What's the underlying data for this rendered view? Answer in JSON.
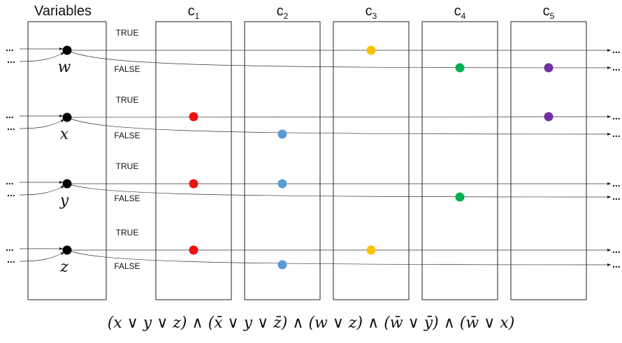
{
  "header": {
    "variables": "Variables"
  },
  "clauses": [
    {
      "name": "c",
      "sub": "1"
    },
    {
      "name": "c",
      "sub": "2"
    },
    {
      "name": "c",
      "sub": "3"
    },
    {
      "name": "c",
      "sub": "4"
    },
    {
      "name": "c",
      "sub": "5"
    }
  ],
  "variables": [
    {
      "name": "w",
      "true_label": "TRUE",
      "false_label": "FALSE"
    },
    {
      "name": "x",
      "true_label": "TRUE",
      "false_label": "FALSE"
    },
    {
      "name": "y",
      "true_label": "TRUE",
      "false_label": "FALSE"
    },
    {
      "name": "z",
      "true_label": "TRUE",
      "false_label": "FALSE"
    }
  ],
  "ellipsis": "...",
  "colors": {
    "c1": "#ee1111",
    "c2": "#5b9bd5",
    "c3": "#ffc000",
    "c4": "#00b050",
    "c5": "#7030a0",
    "variable_node": "#000000"
  },
  "nodes": [
    {
      "var": "w",
      "line": "true",
      "clause": 3,
      "color": "#ffc000"
    },
    {
      "var": "w",
      "line": "false",
      "clause": 4,
      "color": "#00b050"
    },
    {
      "var": "w",
      "line": "false",
      "clause": 5,
      "color": "#7030a0"
    },
    {
      "var": "x",
      "line": "true",
      "clause": 1,
      "color": "#ee1111"
    },
    {
      "var": "x",
      "line": "true",
      "clause": 5,
      "color": "#7030a0"
    },
    {
      "var": "x",
      "line": "false",
      "clause": 2,
      "color": "#5b9bd5"
    },
    {
      "var": "y",
      "line": "true",
      "clause": 1,
      "color": "#ee1111"
    },
    {
      "var": "y",
      "line": "true",
      "clause": 2,
      "color": "#5b9bd5"
    },
    {
      "var": "y",
      "line": "false",
      "clause": 4,
      "color": "#00b050"
    },
    {
      "var": "z",
      "line": "true",
      "clause": 1,
      "color": "#ee1111"
    },
    {
      "var": "z",
      "line": "true",
      "clause": 3,
      "color": "#ffc000"
    },
    {
      "var": "z",
      "line": "false",
      "clause": 2,
      "color": "#5b9bd5"
    }
  ],
  "formula": "(x ∨ y ∨ z) ∧ (x̄ ∨ y ∨ z̄) ∧ (w ∨ z) ∧ (w̄ ∨ ȳ) ∧ (w̄ ∨ x)"
}
